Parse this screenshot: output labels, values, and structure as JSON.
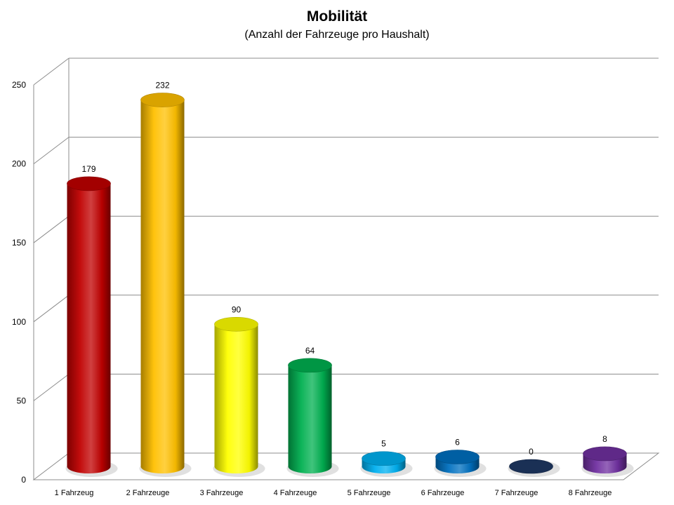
{
  "chart_data": {
    "type": "bar",
    "title": "Mobilität",
    "subtitle": "(Anzahl der Fahrzeuge pro Haushalt)",
    "categories": [
      "1 Fahrzeug",
      "2 Fahrzeuge",
      "3 Fahrzeuge",
      "4 Fahrzeuge",
      "5 Fahrzeuge",
      "6 Fahrzeuge",
      "7 Fahrzeuge",
      "8 Fahrzeuge"
    ],
    "values": [
      179,
      232,
      90,
      64,
      5,
      6,
      0,
      8
    ],
    "data_labels": [
      "179",
      "232",
      "90",
      "64",
      "5",
      "6",
      "0",
      "8"
    ],
    "ylim": [
      0,
      250
    ],
    "yticks": [
      0,
      50,
      100,
      150,
      200,
      250
    ],
    "ytick_labels": [
      "0",
      "50",
      "100",
      "150",
      "200",
      "250"
    ],
    "grid": true,
    "style": "3d-cylinder",
    "colors": [
      "#c00000",
      "#ffc000",
      "#ffff00",
      "#00b050",
      "#00b0f0",
      "#0070c0",
      "#1f3864",
      "#7030a0"
    ]
  }
}
